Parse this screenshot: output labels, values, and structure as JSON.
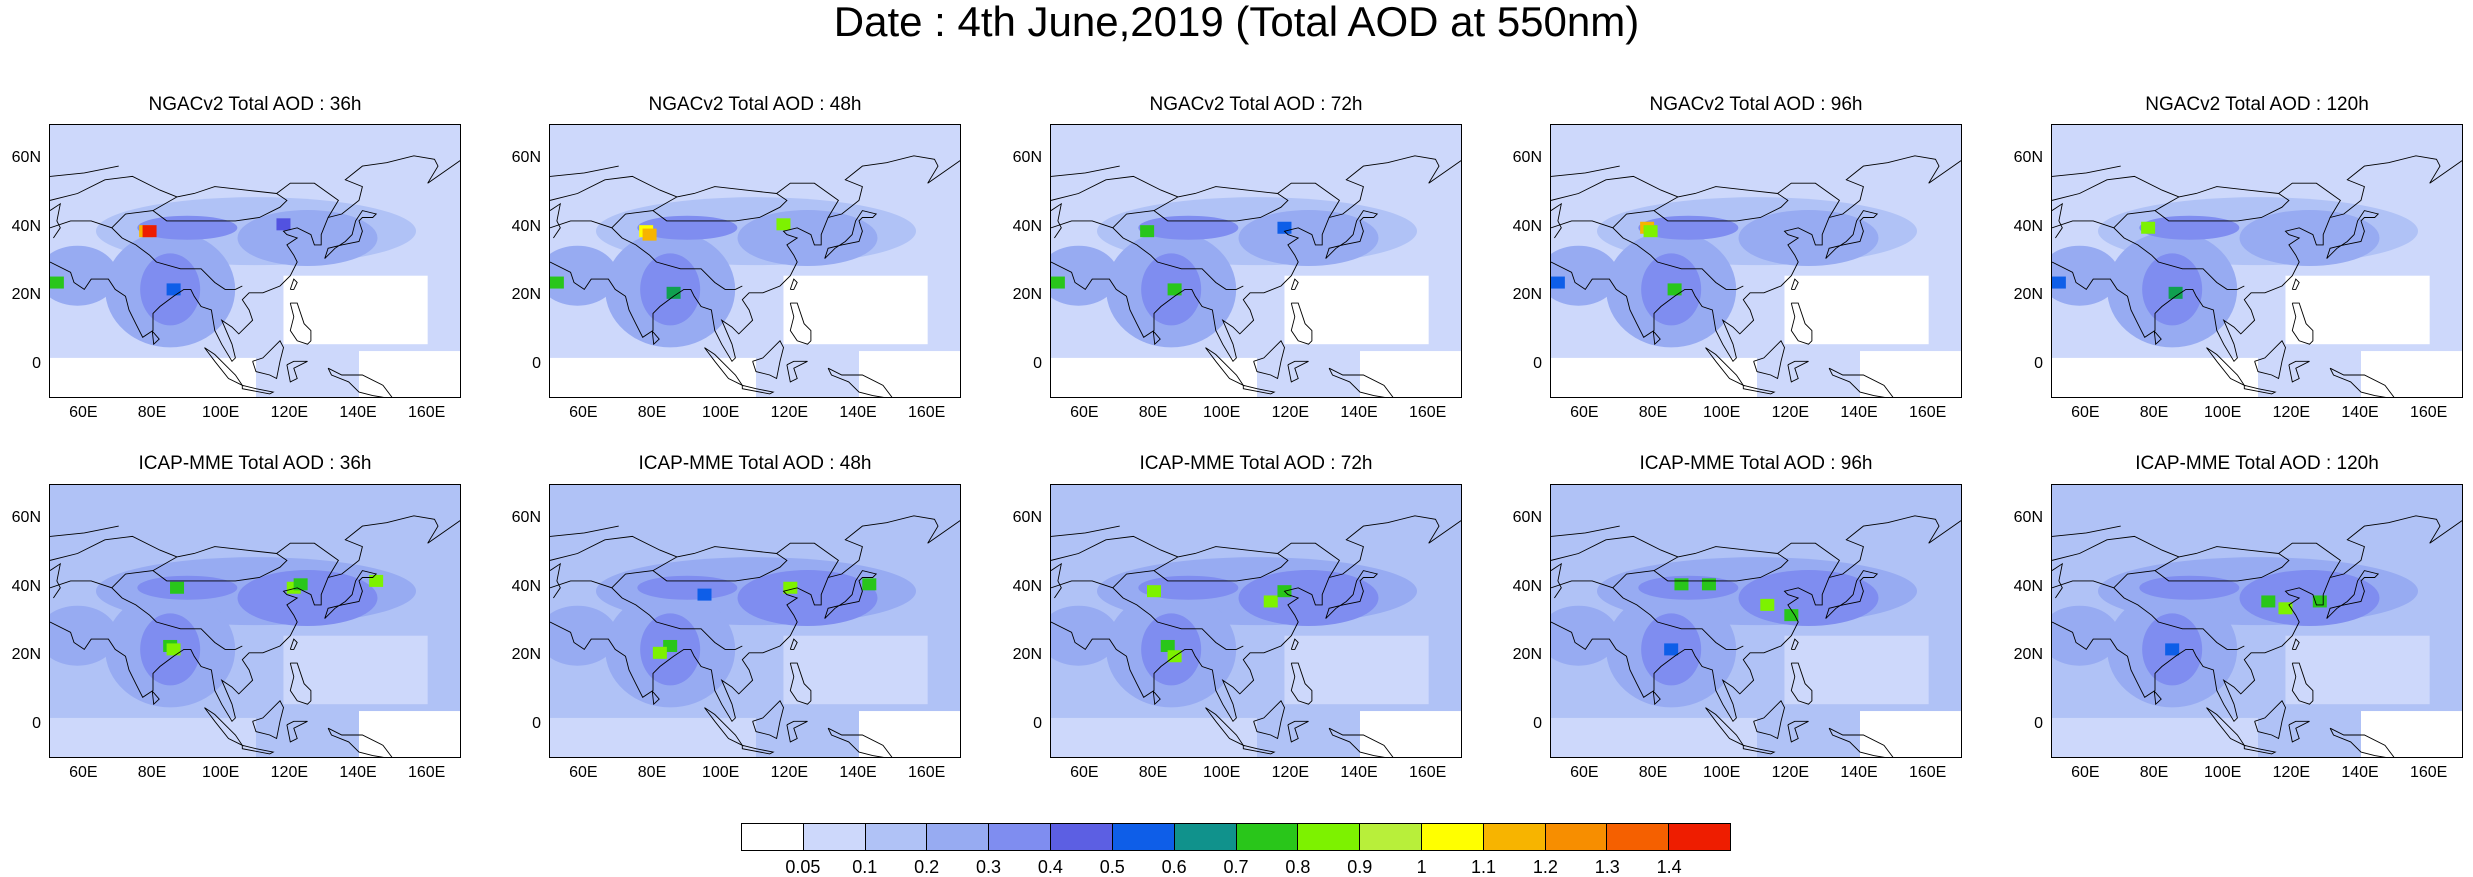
{
  "title": "Date : 4th June,2019 (Total AOD at 550nm)",
  "rows": [
    {
      "panels": [
        {
          "title": "NGACv2 Total AOD : 36h",
          "forecast_hour": 36,
          "model": "NGACv2",
          "hotspots": [
            [
              78,
              39,
              "#f7b400"
            ],
            [
              79,
              39,
              "#ee1d00"
            ],
            [
              52,
              24,
              "#29c61a"
            ],
            [
              86,
              22,
              "#0e5ee8"
            ],
            [
              118,
              41,
              "#5252e0"
            ]
          ]
        },
        {
          "title": "NGACv2 Total AOD : 48h",
          "forecast_hour": 48,
          "model": "NGACv2",
          "hotspots": [
            [
              78,
              39,
              "#ffff00"
            ],
            [
              79,
              38,
              "#f7b400"
            ],
            [
              52,
              24,
              "#29c61a"
            ],
            [
              86,
              21,
              "#10a050"
            ],
            [
              118,
              41,
              "#7df200"
            ]
          ]
        },
        {
          "title": "NGACv2 Total AOD : 72h",
          "forecast_hour": 72,
          "model": "NGACv2",
          "hotspots": [
            [
              78,
              39,
              "#29c61a"
            ],
            [
              52,
              24,
              "#29c61a"
            ],
            [
              86,
              22,
              "#29c61a"
            ],
            [
              118,
              40,
              "#0e5ee8"
            ]
          ]
        },
        {
          "title": "NGACv2 Total AOD : 96h",
          "forecast_hour": 96,
          "model": "NGACv2",
          "hotspots": [
            [
              78,
              40,
              "#f7b400"
            ],
            [
              79,
              39,
              "#7df200"
            ],
            [
              52,
              24,
              "#0e5ee8"
            ],
            [
              86,
              22,
              "#29c61a"
            ]
          ]
        },
        {
          "title": "NGACv2 Total AOD : 120h",
          "forecast_hour": 120,
          "model": "NGACv2",
          "hotspots": [
            [
              78,
              40,
              "#7df200"
            ],
            [
              86,
              21,
              "#10a050"
            ],
            [
              52,
              24,
              "#0e5ee8"
            ]
          ]
        }
      ]
    },
    {
      "panels": [
        {
          "title": "ICAP-MME Total AOD : 36h",
          "forecast_hour": 36,
          "model": "ICAP-MME",
          "hotspots": [
            [
              121,
              40,
              "#7df200"
            ],
            [
              123,
              41,
              "#29c61a"
            ],
            [
              145,
              42,
              "#7df200"
            ],
            [
              85,
              23,
              "#29c61a"
            ],
            [
              86,
              22,
              "#7df200"
            ],
            [
              87,
              40,
              "#29c61a"
            ]
          ]
        },
        {
          "title": "ICAP-MME Total AOD : 48h",
          "forecast_hour": 48,
          "model": "ICAP-MME",
          "hotspots": [
            [
              120,
              40,
              "#7df200"
            ],
            [
              85,
              23,
              "#29c61a"
            ],
            [
              82,
              21,
              "#7df200"
            ],
            [
              95,
              38,
              "#0e5ee8"
            ],
            [
              143,
              41,
              "#29c61a"
            ]
          ]
        },
        {
          "title": "ICAP-MME Total AOD : 72h",
          "forecast_hour": 72,
          "model": "ICAP-MME",
          "hotspots": [
            [
              114,
              36,
              "#7df200"
            ],
            [
              118,
              39,
              "#29c61a"
            ],
            [
              84,
              23,
              "#29c61a"
            ],
            [
              86,
              20,
              "#7df200"
            ],
            [
              80,
              39,
              "#7df200"
            ]
          ]
        },
        {
          "title": "ICAP-MME Total AOD : 96h",
          "forecast_hour": 96,
          "model": "ICAP-MME",
          "hotspots": [
            [
              113,
              35,
              "#7df200"
            ],
            [
              120,
              32,
              "#29c61a"
            ],
            [
              88,
              41,
              "#29c61a"
            ],
            [
              85,
              22,
              "#0e5ee8"
            ],
            [
              96,
              41,
              "#29c61a"
            ]
          ]
        },
        {
          "title": "ICAP-MME Total AOD : 120h",
          "forecast_hour": 120,
          "model": "ICAP-MME",
          "hotspots": [
            [
              118,
              34,
              "#7df200"
            ],
            [
              113,
              36,
              "#29c61a"
            ],
            [
              128,
              36,
              "#29c61a"
            ],
            [
              85,
              22,
              "#0e5ee8"
            ]
          ]
        }
      ]
    }
  ],
  "lat_ticks": [
    "60N",
    "40N",
    "20N",
    "0"
  ],
  "lon_ticks": [
    "60E",
    "80E",
    "100E",
    "120E",
    "140E",
    "160E"
  ],
  "lat_tick_values": [
    60,
    40,
    20,
    0
  ],
  "lon_tick_values": [
    60,
    80,
    100,
    120,
    140,
    160
  ],
  "map_extent": {
    "lon_min": 50,
    "lon_max": 170,
    "lat_min": -10,
    "lat_max": 70
  },
  "colorbar": {
    "ticks": [
      "0.05",
      "0.1",
      "0.2",
      "0.3",
      "0.4",
      "0.5",
      "0.6",
      "0.7",
      "0.8",
      "0.9",
      "1",
      "1.1",
      "1.2",
      "1.3",
      "1.4"
    ],
    "colors": [
      "#ffffff",
      "#cdd8fb",
      "#b0c2f6",
      "#97abf2",
      "#7f8df0",
      "#5c5fe3",
      "#0e5ee8",
      "#10928c",
      "#29c61a",
      "#7df200",
      "#b8ef3a",
      "#ffff00",
      "#f7b400",
      "#f78e00",
      "#f56000",
      "#ee1d00"
    ]
  }
}
